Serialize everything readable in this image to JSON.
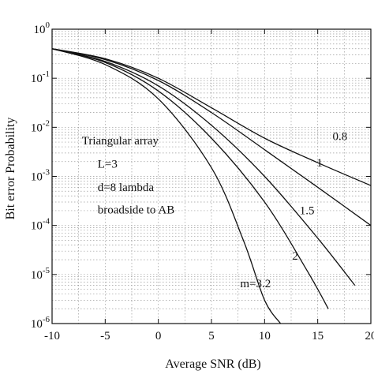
{
  "chart_data": {
    "type": "line",
    "title": "",
    "xlabel": "Average SNR (dB)",
    "ylabel": "Bit error Probability",
    "xlim": [
      -10,
      20
    ],
    "ylim": [
      1e-06,
      1
    ],
    "y_scale": "log",
    "grid": "dotted",
    "x_ticks": [
      -10,
      -5,
      0,
      5,
      10,
      15,
      20
    ],
    "x_tick_labels": [
      "-10",
      "-5",
      "0",
      "5",
      "10",
      "15",
      "20"
    ],
    "y_ticks": [
      {
        "value": 1,
        "mantissa": "10",
        "exponent": "0"
      },
      {
        "value": 0.1,
        "mantissa": "10",
        "exponent": "-1"
      },
      {
        "value": 0.01,
        "mantissa": "10",
        "exponent": "-2"
      },
      {
        "value": 0.001,
        "mantissa": "10",
        "exponent": "-3"
      },
      {
        "value": 0.0001,
        "mantissa": "10",
        "exponent": "-4"
      },
      {
        "value": 1e-05,
        "mantissa": "10",
        "exponent": "-5"
      },
      {
        "value": 1e-06,
        "mantissa": "10",
        "exponent": "-6"
      }
    ],
    "annotation_lines": [
      "Triangular array",
      "L=3",
      "d=8 lambda",
      "broadside to AB"
    ],
    "series": [
      {
        "name": "0.8",
        "x": [
          -10,
          -5,
          0,
          5,
          10,
          15,
          20
        ],
        "y": [
          0.4,
          0.25,
          0.1,
          0.025,
          0.006,
          0.0019,
          0.00065
        ]
      },
      {
        "name": "1",
        "x": [
          -10,
          -5,
          0,
          5,
          10,
          15,
          20
        ],
        "y": [
          0.4,
          0.24,
          0.09,
          0.02,
          0.0035,
          0.0006,
          0.0001
        ]
      },
      {
        "name": "1.5",
        "x": [
          -10,
          -5,
          0,
          5,
          10,
          15,
          18.5
        ],
        "y": [
          0.4,
          0.22,
          0.07,
          0.011,
          0.001,
          5.5e-05,
          6e-06
        ]
      },
      {
        "name": "2",
        "x": [
          -10,
          -5,
          0,
          5,
          10,
          14,
          16
        ],
        "y": [
          0.4,
          0.21,
          0.055,
          0.006,
          0.0003,
          1.2e-05,
          2e-06
        ]
      },
      {
        "name": "m=3.2",
        "x": [
          -10,
          -5,
          0,
          5,
          8,
          10,
          11.5
        ],
        "y": [
          0.4,
          0.19,
          0.038,
          0.0015,
          5e-05,
          3e-06,
          1e-06
        ]
      }
    ]
  }
}
